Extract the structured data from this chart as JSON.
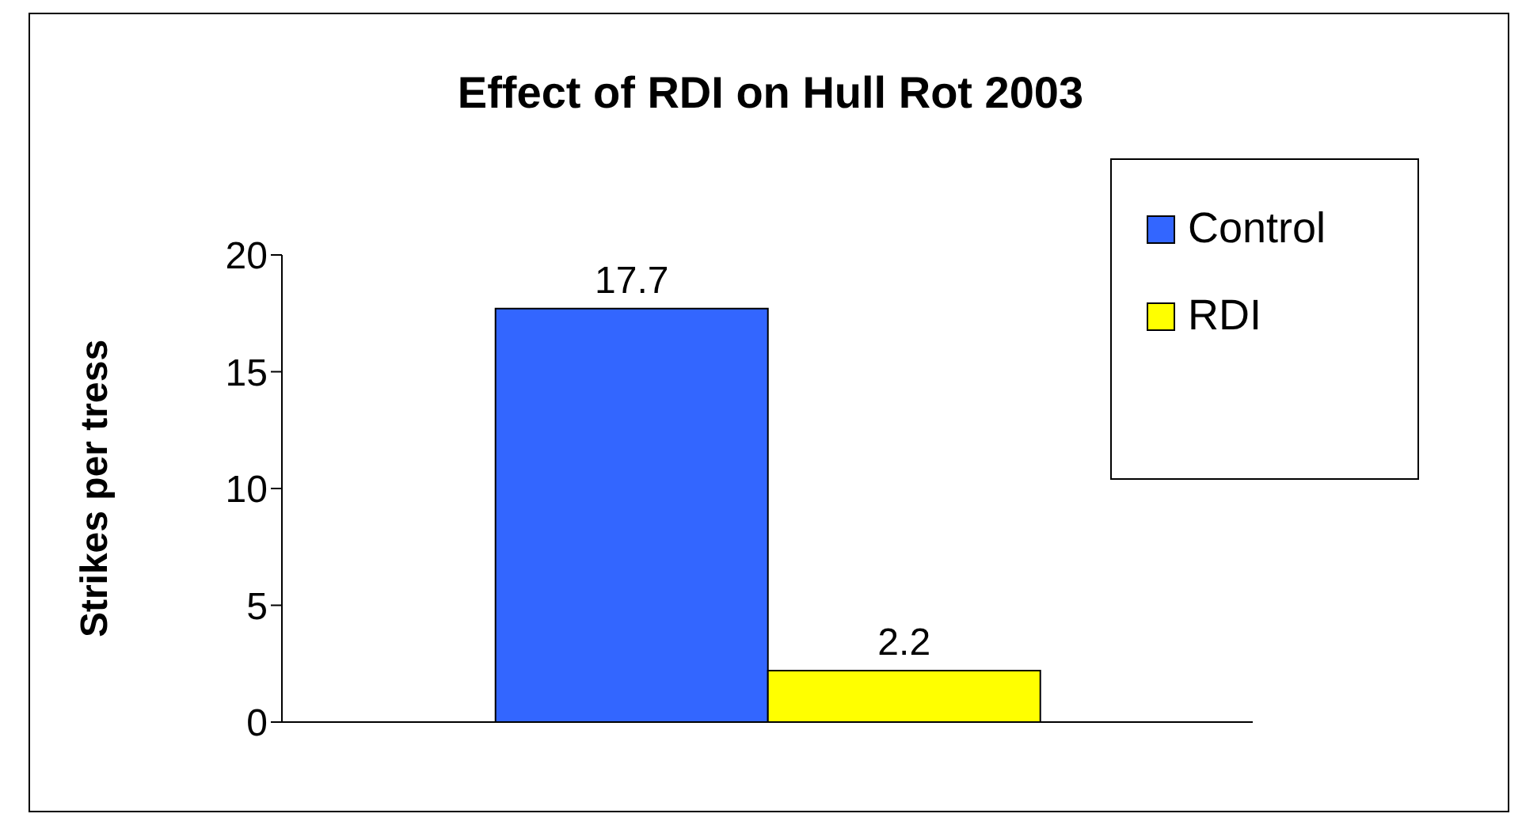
{
  "chart_data": {
    "type": "bar",
    "title": "Effect of RDI on Hull Rot 2003",
    "ylabel": "Strikes per tress",
    "categories": [
      null
    ],
    "series": [
      {
        "name": "Control",
        "color": "#3366ff",
        "values": [
          17.7
        ]
      },
      {
        "name": "RDI",
        "color": "#ffff00",
        "values": [
          2.2
        ]
      }
    ],
    "ylim": [
      0,
      20
    ],
    "yticks": [
      0,
      5,
      10,
      15,
      20
    ],
    "grid": false,
    "legend": "top right",
    "data_labels": true
  }
}
